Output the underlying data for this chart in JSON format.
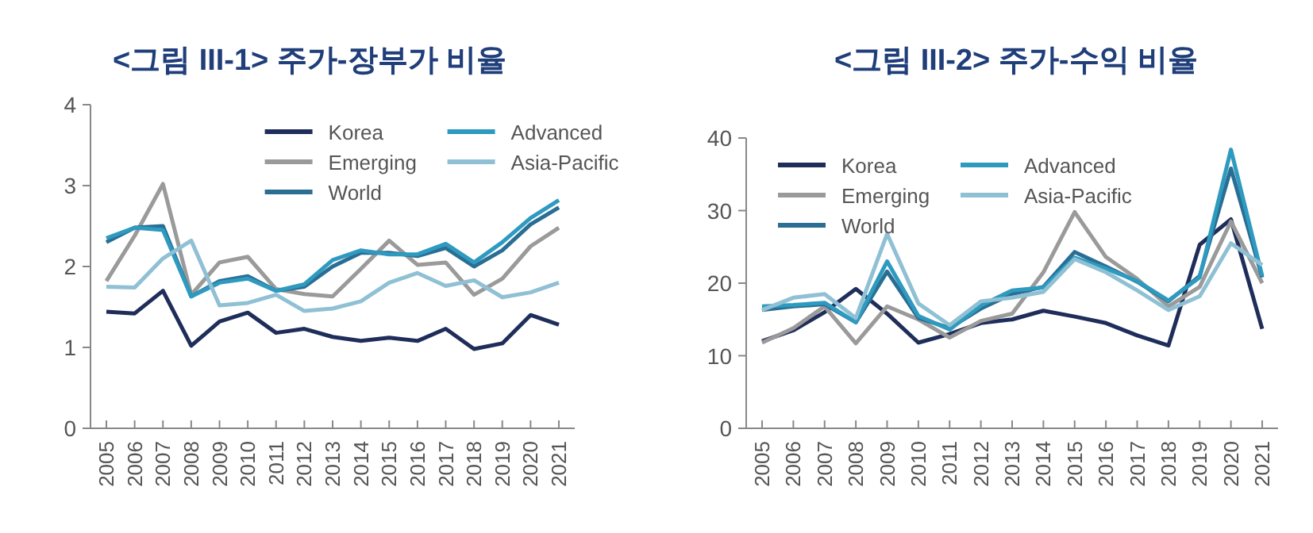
{
  "chart_data": [
    {
      "type": "line",
      "title": "<그림 III-1> 주가-장부가 비율",
      "categories": [
        "2005",
        "2006",
        "2007",
        "2008",
        "2009",
        "2010",
        "2011",
        "2012",
        "2013",
        "2014",
        "2015",
        "2016",
        "2017",
        "2018",
        "2019",
        "2020",
        "2021"
      ],
      "ylim": [
        0,
        4
      ],
      "yticks": [
        0,
        1,
        2,
        3,
        4
      ],
      "legend": "top right",
      "grid": false,
      "marker": "none",
      "series": [
        {
          "name": "Korea",
          "color": "#1f2d5a",
          "values": [
            1.44,
            1.42,
            1.7,
            1.02,
            1.32,
            1.43,
            1.18,
            1.23,
            1.13,
            1.08,
            1.12,
            1.08,
            1.23,
            0.98,
            1.05,
            1.4,
            1.28
          ]
        },
        {
          "name": "Emerging",
          "color": "#9a9a9a",
          "values": [
            1.82,
            2.38,
            3.02,
            1.65,
            2.05,
            2.12,
            1.72,
            1.66,
            1.63,
            1.97,
            2.32,
            2.02,
            2.05,
            1.65,
            1.85,
            2.25,
            2.48
          ]
        },
        {
          "name": "World",
          "color": "#2a6e93",
          "values": [
            2.3,
            2.48,
            2.5,
            1.63,
            1.82,
            1.88,
            1.7,
            1.75,
            2.0,
            2.17,
            2.17,
            2.13,
            2.23,
            2.0,
            2.2,
            2.52,
            2.73
          ]
        },
        {
          "name": "Advanced",
          "color": "#2e9ac0",
          "values": [
            2.35,
            2.48,
            2.45,
            1.63,
            1.8,
            1.85,
            1.7,
            1.78,
            2.08,
            2.2,
            2.15,
            2.15,
            2.28,
            2.05,
            2.3,
            2.6,
            2.82
          ]
        },
        {
          "name": "Asia-Pacific",
          "color": "#8fc0d4",
          "values": [
            1.75,
            1.74,
            2.1,
            2.32,
            1.52,
            1.55,
            1.65,
            1.45,
            1.48,
            1.57,
            1.8,
            1.92,
            1.76,
            1.83,
            1.62,
            1.68,
            1.8
          ]
        }
      ]
    },
    {
      "type": "line",
      "title": "<그림 III-2> 주가-수익 비율",
      "categories": [
        "2005",
        "2006",
        "2007",
        "2008",
        "2009",
        "2010",
        "2011",
        "2012",
        "2013",
        "2014",
        "2015",
        "2016",
        "2017",
        "2018",
        "2019",
        "2020",
        "2021"
      ],
      "ylim": [
        0,
        40
      ],
      "yticks": [
        0,
        10,
        20,
        30,
        40
      ],
      "legend": "top left",
      "grid": false,
      "marker": "none",
      "series": [
        {
          "name": "Korea",
          "color": "#1f2d5a",
          "values": [
            12,
            13.5,
            16,
            19.2,
            15.8,
            11.8,
            13,
            14.5,
            15,
            16.2,
            15.4,
            14.5,
            12.8,
            11.4,
            25.3,
            28.8,
            13.7
          ]
        },
        {
          "name": "Emerging",
          "color": "#9a9a9a",
          "values": [
            11.8,
            13.8,
            16.8,
            11.7,
            16.8,
            15,
            12.5,
            14.8,
            15.8,
            21.5,
            29.8,
            23.6,
            20.6,
            16.8,
            19.5,
            28.5,
            20
          ]
        },
        {
          "name": "World",
          "color": "#2a6e93",
          "values": [
            16.3,
            16.8,
            17.1,
            14.6,
            21.6,
            15.2,
            13.8,
            16.5,
            18.5,
            19.5,
            24.3,
            22.3,
            20.2,
            17.5,
            21,
            35.8,
            20.8
          ]
        },
        {
          "name": "Advanced",
          "color": "#2e9ac0",
          "values": [
            16.8,
            17,
            17.3,
            14.6,
            23,
            15.5,
            13.6,
            16.9,
            19,
            19.4,
            23.5,
            22,
            20.3,
            17.6,
            20.8,
            38.4,
            21
          ]
        },
        {
          "name": "Asia-Pacific",
          "color": "#8fc0d4",
          "values": [
            16.3,
            18,
            18.5,
            15.2,
            26.8,
            17.2,
            14.2,
            17.5,
            18,
            18.8,
            23.3,
            21.5,
            19,
            16.3,
            18.2,
            25.5,
            22.5
          ]
        }
      ]
    }
  ]
}
